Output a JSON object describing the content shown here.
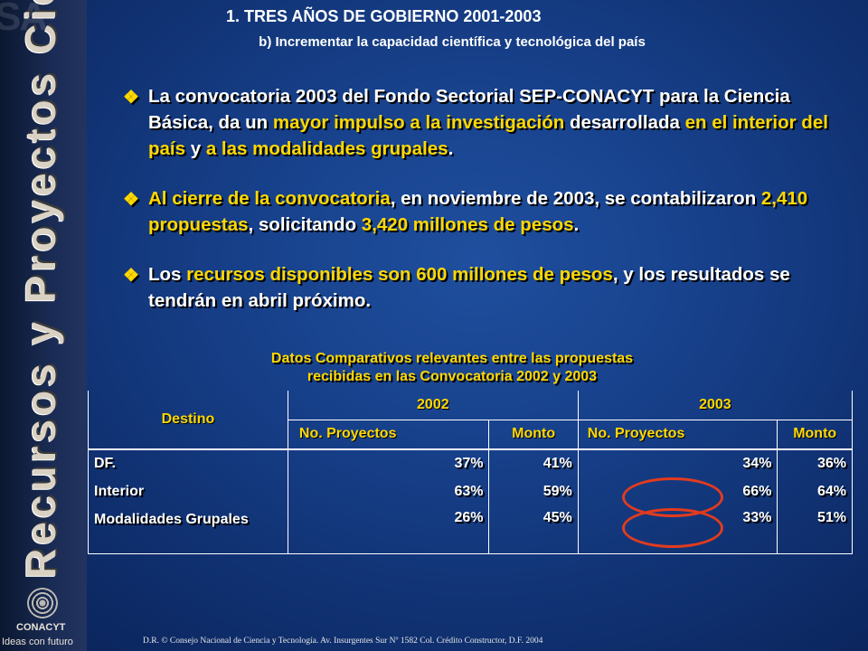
{
  "sidebar": {
    "ghost": "SA",
    "vertical_text": "Recursos y Proyectos Ciencia Básica",
    "logo_name": "CONACYT",
    "logo_tagline": "Ideas con futuro"
  },
  "header": {
    "title": "1.   TRES AÑOS DE GOBIERNO 2001-2003",
    "subtitle": "b) Incrementar la capacidad científica y tecnológica del país"
  },
  "bullets": [
    {
      "parts": [
        {
          "t": "La convocatoria 2003 del Fondo Sectorial SEP-CONACYT para la Ciencia Básica, da un ",
          "hl": false
        },
        {
          "t": "mayor impulso a la investigación",
          "hl": true
        },
        {
          "t": " desarrollada ",
          "hl": false
        },
        {
          "t": "en el interior del país",
          "hl": true
        },
        {
          "t": " y ",
          "hl": false
        },
        {
          "t": "a las modalidades grupales",
          "hl": true
        },
        {
          "t": ".",
          "hl": false
        }
      ]
    },
    {
      "parts": [
        {
          "t": "Al cierre de la convocatoria",
          "hl": true
        },
        {
          "t": ", en noviembre de 2003, se contabilizaron ",
          "hl": false
        },
        {
          "t": "2,410 propuestas",
          "hl": true
        },
        {
          "t": ", solicitando ",
          "hl": false
        },
        {
          "t": "3,420 millones de pesos",
          "hl": true
        },
        {
          "t": ".",
          "hl": false
        }
      ]
    },
    {
      "parts": [
        {
          "t": "Los ",
          "hl": false
        },
        {
          "t": "recursos disponibles son 600 millones de pesos",
          "hl": true
        },
        {
          "t": ", y los resultados se tendrán en abril próximo.",
          "hl": false
        }
      ]
    }
  ],
  "table": {
    "caption_line1": "Datos Comparativos  relevantes entre las propuestas",
    "caption_line2": "recibidas en las Convocatoria 2002 y 2003",
    "destino": "Destino",
    "year_2002": "2002",
    "year_2003": "2003",
    "col_proyectos": "No. Proyectos",
    "col_monto": "Monto",
    "rows": [
      {
        "label": "DF.",
        "p2002": "37%",
        "m2002": "41%",
        "p2003": "34%",
        "m2003": "36%"
      },
      {
        "label": "Interior",
        "p2002": "63%",
        "m2002": "59%",
        "p2003": "66%",
        "m2003": "64%"
      },
      {
        "label": "Modalidades Grupales",
        "p2002": "26%",
        "m2002": "45%",
        "p2003": "33%",
        "m2003": "51%"
      }
    ]
  },
  "colors": {
    "highlight": "#ffd800",
    "ring": "#e23b1e",
    "background": "#17408a"
  },
  "footer": "D.R. © Consejo Nacional de Ciencia y Tecnología. Av. Insurgentes Sur Nº 1582 Col. Crédito Constructor, D.F.    2004"
}
